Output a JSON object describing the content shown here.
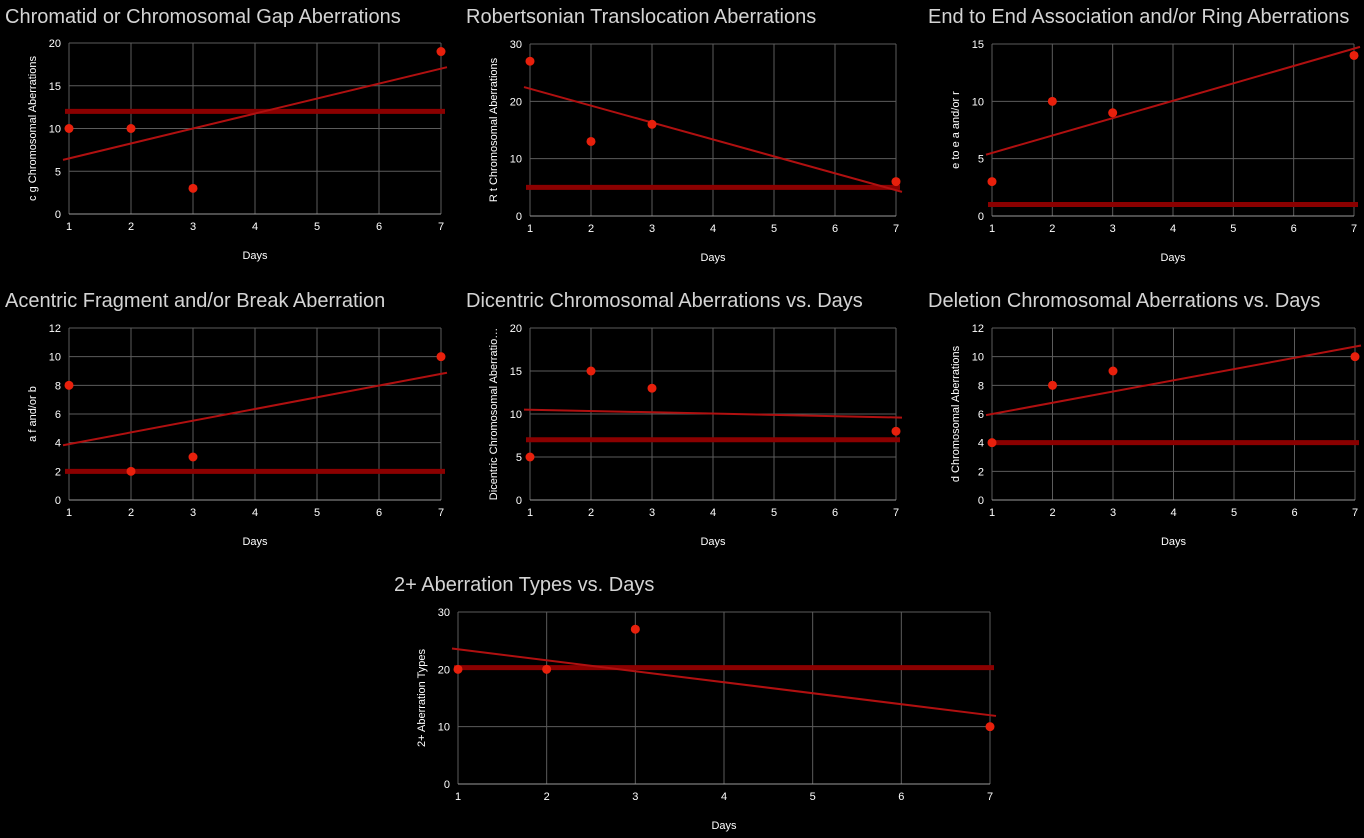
{
  "chart_data": [
    {
      "type": "scatter",
      "title": "Chromatid or Chromosomal Gap Aberrations",
      "xlabel": "Days",
      "ylabel": "c g Chromosomal Aberrations",
      "x": [
        1,
        2,
        3,
        7
      ],
      "y": [
        10,
        10,
        3,
        19
      ],
      "xlim": [
        1,
        7
      ],
      "ylim": [
        0,
        20
      ],
      "xticks": [
        1,
        2,
        3,
        4,
        5,
        6,
        7
      ],
      "yticks": [
        0,
        5,
        10,
        15,
        20
      ],
      "mean_line": 12,
      "trendline": {
        "x": [
          1,
          7
        ],
        "y": [
          6.5,
          17
        ]
      },
      "grid": true
    },
    {
      "type": "scatter",
      "title": "Robertsonian Translocation Aberrations",
      "xlabel": "Days",
      "ylabel": "R t Chromosomal Aberrations",
      "x": [
        1,
        2,
        3,
        7
      ],
      "y": [
        27,
        13,
        16,
        6
      ],
      "xlim": [
        1,
        7
      ],
      "ylim": [
        0,
        30
      ],
      "xticks": [
        1,
        2,
        3,
        4,
        5,
        6,
        7
      ],
      "yticks": [
        0,
        10,
        20,
        30
      ],
      "mean_line": 5,
      "trendline": {
        "x": [
          1,
          7
        ],
        "y": [
          22.2,
          4.5
        ]
      },
      "grid": true
    },
    {
      "type": "scatter",
      "title": "End to End Association and/or Ring Aberrations",
      "xlabel": "Days",
      "ylabel": "e to e a and/or r",
      "x": [
        1,
        2,
        3,
        7
      ],
      "y": [
        3,
        10,
        9,
        14
      ],
      "xlim": [
        1,
        7
      ],
      "ylim": [
        0,
        15
      ],
      "xticks": [
        1,
        2,
        3,
        4,
        5,
        6,
        7
      ],
      "yticks": [
        0,
        5,
        10,
        15
      ],
      "mean_line": 1,
      "trendline": {
        "x": [
          1,
          7
        ],
        "y": [
          5.5,
          14.6
        ]
      },
      "grid": true
    },
    {
      "type": "scatter",
      "title": "Acentric Fragment and/or Break Aberration",
      "xlabel": "Days",
      "ylabel": "a f and/or b",
      "x": [
        1,
        2,
        3,
        7
      ],
      "y": [
        8,
        2,
        3,
        10
      ],
      "xlim": [
        1,
        7
      ],
      "ylim": [
        0,
        12
      ],
      "xticks": [
        1,
        2,
        3,
        4,
        5,
        6,
        7
      ],
      "yticks": [
        0,
        2,
        4,
        6,
        8,
        10,
        12
      ],
      "mean_line": 2,
      "trendline": {
        "x": [
          1,
          7
        ],
        "y": [
          3.9,
          8.8
        ]
      },
      "grid": true
    },
    {
      "type": "scatter",
      "title": "Dicentric Chromosomal Aberrations vs. Days",
      "xlabel": "Days",
      "ylabel": "Dicentric Chromosomal Aberratio…",
      "x": [
        1,
        2,
        3,
        7
      ],
      "y": [
        5,
        15,
        13,
        8
      ],
      "xlim": [
        1,
        7
      ],
      "ylim": [
        0,
        20
      ],
      "xticks": [
        1,
        2,
        3,
        4,
        5,
        6,
        7
      ],
      "yticks": [
        0,
        5,
        10,
        15,
        20
      ],
      "mean_line": 7,
      "trendline": {
        "x": [
          1,
          7
        ],
        "y": [
          10.5,
          9.6
        ]
      },
      "grid": true
    },
    {
      "type": "scatter",
      "title": "Deletion Chromosomal Aberrations vs. Days",
      "xlabel": "Days",
      "ylabel": "d Chromosomal Aberrations",
      "x": [
        1,
        2,
        3,
        7
      ],
      "y": [
        4,
        8,
        9,
        10
      ],
      "xlim": [
        1,
        7
      ],
      "ylim": [
        0,
        12
      ],
      "xticks": [
        1,
        2,
        3,
        4,
        5,
        6,
        7
      ],
      "yticks": [
        0,
        2,
        4,
        6,
        8,
        10,
        12
      ],
      "mean_line": 4,
      "trendline": {
        "x": [
          1,
          7
        ],
        "y": [
          6,
          10.7
        ]
      },
      "grid": true
    },
    {
      "type": "scatter",
      "title": "2+ Aberration Types vs. Days",
      "xlabel": "Days",
      "ylabel": "2+ Aberration Types",
      "x": [
        1,
        2,
        3,
        7
      ],
      "y": [
        20,
        20,
        27,
        10
      ],
      "xlim": [
        1,
        7
      ],
      "ylim": [
        0,
        30
      ],
      "xticks": [
        1,
        2,
        3,
        4,
        5,
        6,
        7
      ],
      "yticks": [
        0,
        10,
        20,
        30
      ],
      "mean_line": 20.3,
      "trendline": {
        "x": [
          1,
          7
        ],
        "y": [
          23.5,
          12
        ]
      },
      "grid": true
    }
  ],
  "colors": {
    "background": "#000000",
    "title": "#d4d4d4",
    "axis_text": "#ffffff",
    "grid": "#5c5c5c",
    "point": "#e8200c",
    "trendline": "#b01010",
    "mean_line": "#8b0000"
  }
}
